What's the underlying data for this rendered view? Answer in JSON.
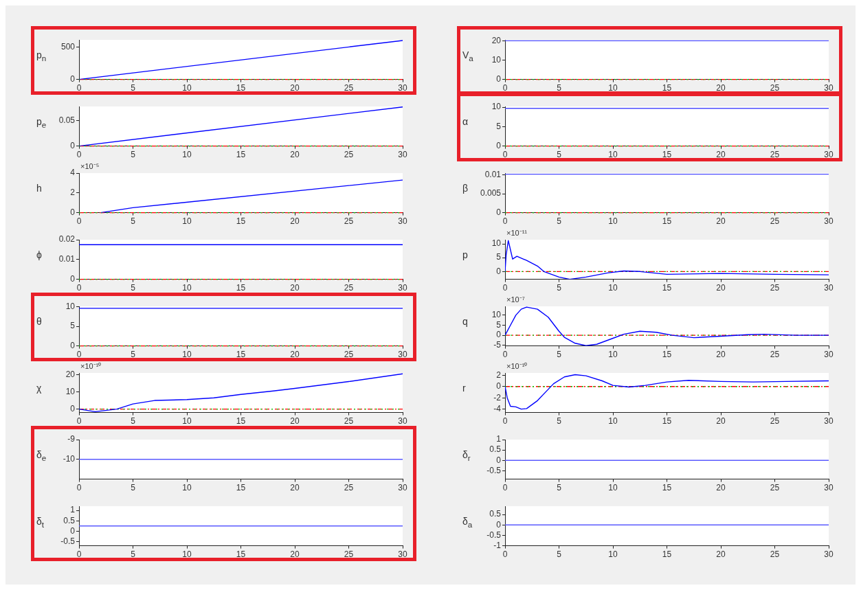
{
  "chart_data": [
    {
      "type": "line",
      "ylabel": "p$_{n}$",
      "x": [
        0,
        30
      ],
      "values": [
        0,
        600
      ],
      "color": "#0000ff",
      "xlim": [
        0,
        30
      ],
      "xticks": [
        0,
        5,
        10,
        15,
        20,
        25,
        30
      ],
      "ylim": [
        0,
        610
      ],
      "yticks": [
        0,
        500
      ],
      "ref_lines": [
        {
          "axis": "y",
          "value": 0,
          "color": "#ff0000",
          "line_style": "dashed"
        },
        {
          "axis": "y",
          "value": 0,
          "color": "#00cc00",
          "line_style": "dotted"
        }
      ]
    },
    {
      "type": "line",
      "ylabel": "V$_{a}$",
      "x": [
        0,
        30
      ],
      "values": [
        20,
        20
      ],
      "color": "#4d4dff",
      "xlim": [
        0,
        30
      ],
      "xticks": [
        0,
        5,
        10,
        15,
        20,
        25,
        30
      ],
      "ylim": [
        0,
        20.5
      ],
      "yticks": [
        0,
        10,
        20
      ],
      "ref_lines": [
        {
          "axis": "y",
          "value": 0,
          "color": "#ff0000",
          "line_style": "dashed"
        },
        {
          "axis": "y",
          "value": 0,
          "color": "#00cc00",
          "line_style": "dotted"
        }
      ]
    },
    {
      "type": "line",
      "ylabel": "p$_{e}$",
      "x": [
        0,
        30
      ],
      "values": [
        0,
        0.077
      ],
      "color": "#0000ff",
      "xlim": [
        0,
        30
      ],
      "xticks": [
        0,
        5,
        10,
        15,
        20,
        25,
        30
      ],
      "ylim": [
        0,
        0.078
      ],
      "yticks": [
        0,
        0.05
      ],
      "ref_lines": [
        {
          "axis": "y",
          "value": 0,
          "color": "#ff0000",
          "line_style": "dashed"
        },
        {
          "axis": "y",
          "value": 0,
          "color": "#00cc00",
          "line_style": "dotted"
        }
      ]
    },
    {
      "type": "line",
      "ylabel": "α",
      "x": [
        0,
        30
      ],
      "values": [
        9.7,
        9.7
      ],
      "color": "#4d4dff",
      "xlim": [
        0,
        30
      ],
      "xticks": [
        0,
        5,
        10,
        15,
        20,
        25,
        30
      ],
      "ylim": [
        0,
        10.2
      ],
      "yticks": [
        0,
        5,
        10
      ],
      "ref_lines": [
        {
          "axis": "y",
          "value": 0,
          "color": "#ff0000",
          "line_style": "dashed"
        },
        {
          "axis": "y",
          "value": 0,
          "color": "#00cc00",
          "line_style": "dotted"
        }
      ]
    },
    {
      "type": "line",
      "ylabel": "h",
      "annotations": [
        "×10⁻⁵"
      ],
      "x": [
        2,
        5,
        30
      ],
      "values": [
        0,
        0.5,
        3.3
      ],
      "color": "#0000ff",
      "xlim": [
        0,
        30
      ],
      "xticks": [
        0,
        5,
        10,
        15,
        20,
        25,
        30
      ],
      "ylim": [
        0,
        4
      ],
      "yticks": [
        0,
        2,
        4
      ],
      "ref_lines": [
        {
          "axis": "y",
          "value": 0,
          "color": "#ff0000",
          "line_style": "dashed"
        },
        {
          "axis": "y",
          "value": 0,
          "color": "#00cc00",
          "line_style": "dotted"
        }
      ]
    },
    {
      "type": "line",
      "ylabel": "β",
      "x": [
        0,
        30
      ],
      "values": [
        0.0102,
        0.0102
      ],
      "color": "#4d4dff",
      "xlim": [
        0,
        30
      ],
      "xticks": [
        0,
        5,
        10,
        15,
        20,
        25,
        30
      ],
      "ylim": [
        0,
        0.0105
      ],
      "yticks": [
        0,
        0.005,
        0.01
      ],
      "ref_lines": [
        {
          "axis": "y",
          "value": 0,
          "color": "#ff0000",
          "line_style": "dashed"
        },
        {
          "axis": "y",
          "value": 0,
          "color": "#00cc00",
          "line_style": "dotted"
        }
      ]
    },
    {
      "type": "line",
      "ylabel": "ϕ",
      "x": [
        0,
        30
      ],
      "values": [
        0.0175,
        0.0175
      ],
      "color": "#0000ff",
      "xlim": [
        0,
        30
      ],
      "xticks": [
        0,
        5,
        10,
        15,
        20,
        25,
        30
      ],
      "ylim": [
        0,
        0.02
      ],
      "yticks": [
        0,
        0.01,
        0.02
      ],
      "ref_lines": [
        {
          "axis": "y",
          "value": 0,
          "color": "#ff0000",
          "line_style": "dashed"
        },
        {
          "axis": "y",
          "value": 0,
          "color": "#00cc00",
          "line_style": "dotted"
        }
      ]
    },
    {
      "type": "line",
      "ylabel": "p",
      "annotations": [
        "×10⁻¹¹"
      ],
      "x": [
        0,
        0.1,
        0.3,
        0.7,
        1.1,
        2,
        3,
        3.6,
        5,
        6,
        7.5,
        9.5,
        11,
        12.5,
        15,
        20,
        25,
        30
      ],
      "values": [
        0,
        6,
        11.2,
        4.5,
        5.5,
        4,
        2,
        0,
        -2,
        -2.8,
        -2,
        -0.5,
        0.2,
        0,
        -1,
        -0.7,
        -1,
        -1.2
      ],
      "color": "#0000ff",
      "xlim": [
        0,
        30
      ],
      "xticks": [
        0,
        5,
        10,
        15,
        20,
        25,
        30
      ],
      "ylim": [
        -2.8,
        11.5
      ],
      "yticks": [
        0,
        5,
        10
      ],
      "ref_lines": [
        {
          "axis": "y",
          "value": 0,
          "color": "#ff0000",
          "line_style": "dashed"
        },
        {
          "axis": "y",
          "value": 0,
          "color": "#00cc00",
          "line_style": "dotted"
        }
      ]
    },
    {
      "type": "line",
      "ylabel": "θ",
      "x": [
        0,
        30
      ],
      "values": [
        9.6,
        9.6
      ],
      "color": "#0000ff",
      "xlim": [
        0,
        30
      ],
      "xticks": [
        0,
        5,
        10,
        15,
        20,
        25,
        30
      ],
      "ylim": [
        0,
        10.1
      ],
      "yticks": [
        0,
        5,
        10
      ],
      "ref_lines": [
        {
          "axis": "y",
          "value": 0,
          "color": "#ff0000",
          "line_style": "dashed"
        },
        {
          "axis": "y",
          "value": 0,
          "color": "#00cc00",
          "line_style": "dotted"
        }
      ]
    },
    {
      "type": "line",
      "ylabel": "q",
      "annotations": [
        "×10⁻⁷"
      ],
      "x": [
        0,
        0.5,
        1,
        1.5,
        2,
        3,
        4,
        5,
        5.5,
        6.5,
        7.5,
        8.5,
        10,
        11,
        12.5,
        14,
        15.5,
        17.5,
        20,
        22.5,
        24,
        27,
        30
      ],
      "values": [
        0,
        5,
        10,
        13,
        14,
        13,
        9,
        2,
        -1,
        -4,
        -5.2,
        -4.5,
        -1.5,
        0.5,
        2,
        1.5,
        0,
        -1.2,
        -0.5,
        0.3,
        0.5,
        0,
        0
      ],
      "color": "#0000ff",
      "xlim": [
        0,
        30
      ],
      "xticks": [
        0,
        5,
        10,
        15,
        20,
        25,
        30
      ],
      "ylim": [
        -5.3,
        14.4
      ],
      "yticks": [
        -5,
        0,
        5,
        10
      ],
      "ref_lines": [
        {
          "axis": "y",
          "value": 0,
          "color": "#ff0000",
          "line_style": "dashed"
        },
        {
          "axis": "y",
          "value": 0,
          "color": "#00cc00",
          "line_style": "dotted"
        }
      ]
    },
    {
      "type": "line",
      "ylabel": "χ",
      "annotations": [
        "×10⁻¹⁰"
      ],
      "x": [
        0,
        1.5,
        3.5,
        5,
        7,
        10,
        12.5,
        15,
        18,
        20,
        25,
        30
      ],
      "values": [
        0,
        -1.5,
        0,
        3,
        5,
        5.5,
        6.5,
        8.5,
        10.5,
        12,
        16,
        20.5
      ],
      "color": "#0000ff",
      "xlim": [
        0,
        30
      ],
      "xticks": [
        0,
        5,
        10,
        15,
        20,
        25,
        30
      ],
      "ylim": [
        -2,
        21
      ],
      "yticks": [
        0,
        10,
        20
      ],
      "ref_lines": [
        {
          "axis": "y",
          "value": 0,
          "color": "#ff0000",
          "line_style": "dashed"
        },
        {
          "axis": "y",
          "value": 0,
          "color": "#00cc00",
          "line_style": "dotted"
        }
      ]
    },
    {
      "type": "line",
      "ylabel": "r",
      "annotations": [
        "×10⁻¹⁰"
      ],
      "x": [
        0,
        0.2,
        0.5,
        1,
        1.5,
        2,
        3,
        4,
        4.5,
        5.5,
        6.5,
        7.5,
        9,
        10,
        11.5,
        13,
        15,
        17,
        20,
        23,
        26,
        30
      ],
      "values": [
        0,
        -2,
        -3.5,
        -3.6,
        -4,
        -3.9,
        -2.5,
        -0.5,
        0.5,
        1.7,
        2.1,
        1.9,
        1,
        0.2,
        -0.1,
        0.2,
        0.8,
        1.1,
        0.9,
        0.8,
        0.9,
        1
      ],
      "color": "#0000ff",
      "xlim": [
        0,
        30
      ],
      "xticks": [
        0,
        5,
        10,
        15,
        20,
        25,
        30
      ],
      "ylim": [
        -4.6,
        2.4
      ],
      "yticks": [
        -4,
        -2,
        0,
        2
      ],
      "ref_lines": [
        {
          "axis": "y",
          "value": 0,
          "color": "#ff0000",
          "line_style": "dashed"
        },
        {
          "axis": "y",
          "value": 0,
          "color": "#00cc00",
          "line_style": "dotted"
        }
      ]
    },
    {
      "type": "line",
      "ylabel": "δ$_{e}$",
      "x": [
        0,
        30
      ],
      "values": [
        -10,
        -10
      ],
      "color": "#5a5aff",
      "xlim": [
        0,
        30
      ],
      "xticks": [
        0,
        5,
        10,
        15,
        20,
        25,
        30
      ],
      "ylim": [
        -11,
        -9
      ],
      "yticks": [
        -10,
        -9
      ]
    },
    {
      "type": "line",
      "ylabel": "δ$_{r}$",
      "x": [
        0,
        30
      ],
      "values": [
        0,
        0
      ],
      "color": "#5a5aff",
      "xlim": [
        0,
        30
      ],
      "xticks": [
        0,
        5,
        10,
        15,
        20,
        25,
        30
      ],
      "ylim": [
        -0.9,
        1
      ],
      "yticks": [
        -0.5,
        0,
        0.5,
        1
      ]
    },
    {
      "type": "line",
      "ylabel": "δ$_{t}$",
      "x": [
        0,
        30
      ],
      "values": [
        0.25,
        0.25
      ],
      "color": "#5a5aff",
      "xlim": [
        0,
        30
      ],
      "xticks": [
        0,
        5,
        10,
        15,
        20,
        25,
        30
      ],
      "ylim": [
        -0.7,
        1.2
      ],
      "yticks": [
        -0.5,
        0,
        0.5,
        1
      ]
    },
    {
      "type": "line",
      "ylabel": "δ$_{a}$",
      "x": [
        0,
        30
      ],
      "values": [
        0,
        0
      ],
      "color": "#5a5aff",
      "xlim": [
        0,
        30
      ],
      "xticks": [
        0,
        5,
        10,
        15,
        20,
        25,
        30
      ],
      "ylim": [
        -1,
        0.9
      ],
      "yticks": [
        -1,
        -0.5,
        0,
        0.5
      ]
    }
  ]
}
